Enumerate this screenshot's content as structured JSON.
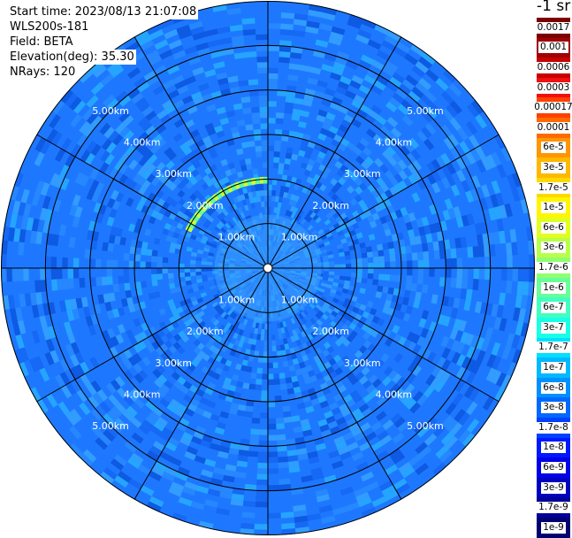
{
  "info": {
    "start_time": "Start time: 2023/08/13 21:07:08",
    "instrument": "WLS200s-181",
    "field": "Field: BETA",
    "elevation": "Elevation(deg): 35.30",
    "nrays": "NRays: 120"
  },
  "colorbar": {
    "unit_label": "-1 sr",
    "ticks": [
      "0.0017",
      "0.001",
      "0.0006",
      "0.0003",
      "0.00017",
      "0.0001",
      "6e-5",
      "3e-5",
      "1.7e-5",
      "1e-5",
      "6e-6",
      "3e-6",
      "1.7e-6",
      "1e-6",
      "6e-7",
      "3e-7",
      "1.7e-7",
      "1e-7",
      "6e-8",
      "3e-8",
      "1.7e-8",
      "1e-8",
      "6e-9",
      "3e-9",
      "1.7e-9",
      "1e-9"
    ],
    "colors": [
      "#7a0000",
      "#a00000",
      "#c80000",
      "#f01010",
      "#ff4000",
      "#ff6a00",
      "#ff9500",
      "#ffb800",
      "#ffd800",
      "#fff500",
      "#e0ff20",
      "#b8ff48",
      "#90ff70",
      "#68ff98",
      "#40ffc0",
      "#18ffe8",
      "#00e0ff",
      "#00b8ff",
      "#0090ff",
      "#0068ff",
      "#0040ff",
      "#0018ff",
      "#0000e8",
      "#0000c0",
      "#000098",
      "#000070"
    ]
  },
  "chart_data": {
    "type": "heatmap",
    "projection": "polar-ppi",
    "field": "BETA",
    "nrays": 120,
    "range_unit": "km",
    "max_range_km": 6.0,
    "range_rings_km": [
      1,
      2,
      3,
      4,
      5,
      6
    ],
    "ring_labels": [
      "1.00km",
      "2.00km",
      "3.00km",
      "4.00km",
      "5.00km"
    ],
    "radial_lines_deg": [
      0,
      30,
      60,
      90,
      120,
      150,
      180,
      210,
      240,
      270,
      300,
      330
    ],
    "background_color": "#1e78ff",
    "features": [
      {
        "name": "near-field",
        "range_km": [
          0,
          1.2
        ],
        "color": "#3ca0ff"
      },
      {
        "name": "arc-echo",
        "range_km": [
          1.9,
          2.05
        ],
        "azimuth_deg": [
          295,
          360
        ],
        "colors": [
          "#c8ff3c",
          "#60ffa0"
        ]
      }
    ]
  }
}
